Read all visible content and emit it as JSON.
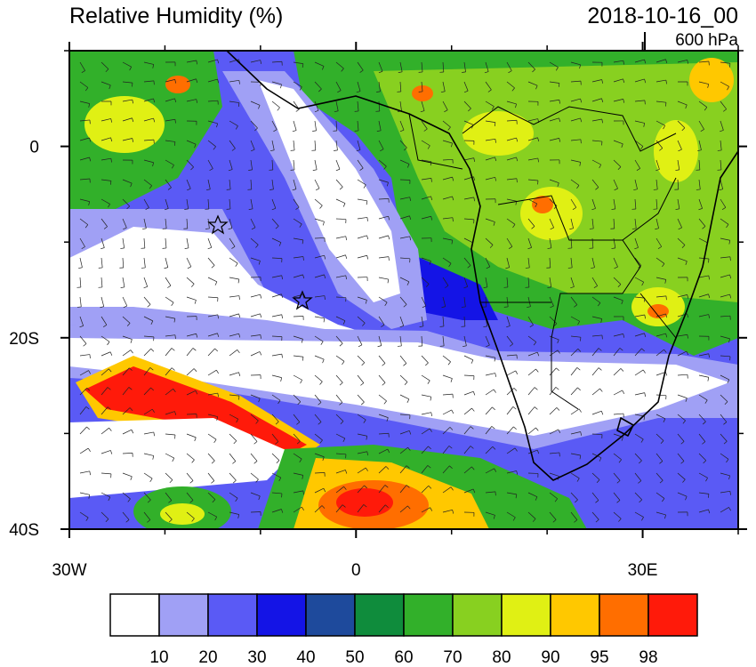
{
  "map": {
    "title": "Relative Humidity (%)",
    "time": "2018-10-16_00",
    "level": "600 hPa",
    "xlim": [
      -30,
      40
    ],
    "ylim": [
      -40,
      10
    ],
    "xticks": [
      {
        "value": -30,
        "label": "30W"
      },
      0,
      {
        "value": 30,
        "label": "30E"
      }
    ],
    "yticks": [
      0,
      {
        "value": -20,
        "label": "20S"
      },
      {
        "value": -40,
        "label": "40S"
      }
    ],
    "minor_xticks": [
      -20,
      -10,
      10,
      20,
      40
    ],
    "minor_yticks": [
      10,
      -10,
      -30
    ],
    "colorbar": {
      "levels": [
        10,
        20,
        30,
        40,
        50,
        60,
        70,
        80,
        90,
        95,
        98
      ],
      "colors": [
        "#ffffff",
        "#a0a0f5",
        "#5a5af5",
        "#1414e6",
        "#1e4a9c",
        "#0f8c3c",
        "#32b02a",
        "#88d020",
        "#e0f014",
        "#ffc800",
        "#ff6e00",
        "#ff1a0a"
      ]
    }
  }
}
